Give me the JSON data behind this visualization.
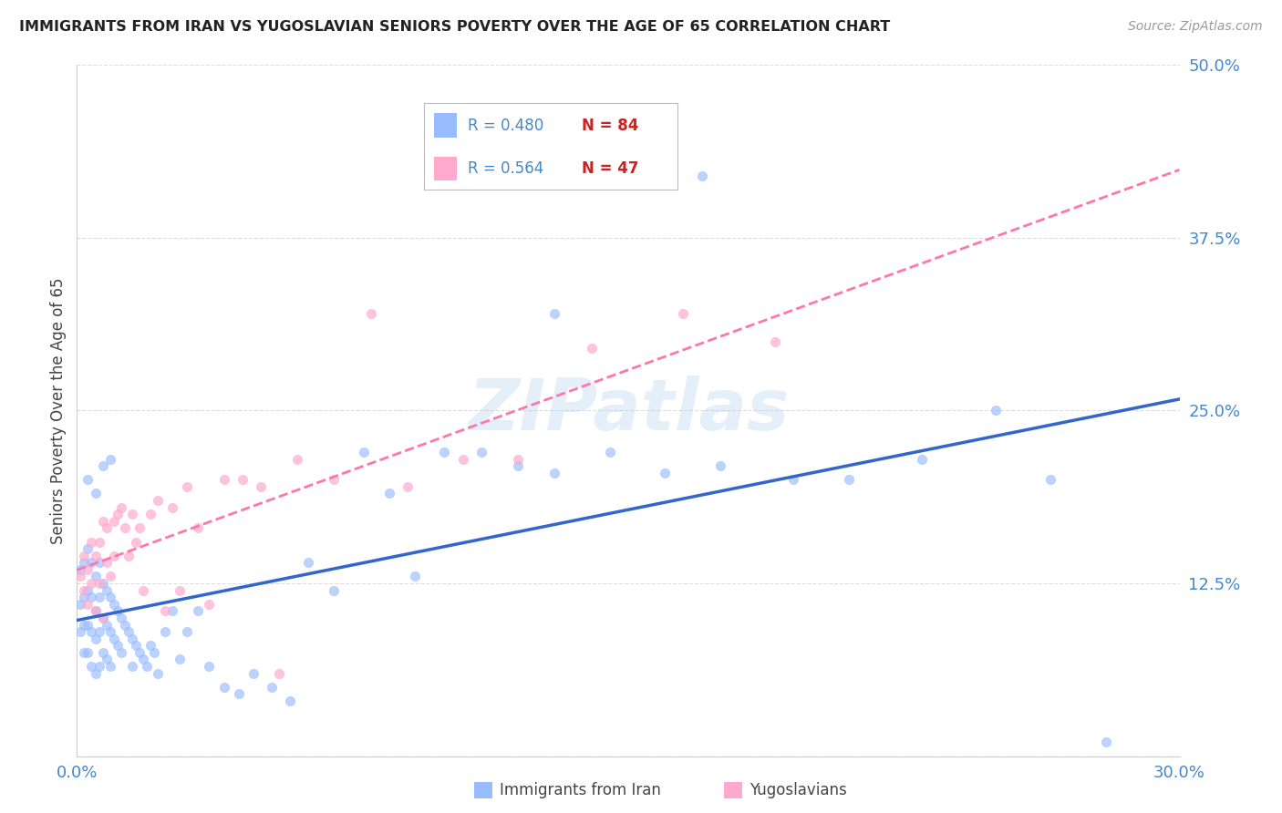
{
  "title": "IMMIGRANTS FROM IRAN VS YUGOSLAVIAN SENIORS POVERTY OVER THE AGE OF 65 CORRELATION CHART",
  "source": "Source: ZipAtlas.com",
  "ylabel": "Seniors Poverty Over the Age of 65",
  "xmin": 0.0,
  "xmax": 0.3,
  "ymin": 0.0,
  "ymax": 0.5,
  "color_blue": "#99bbff",
  "color_blue_line": "#3366cc",
  "color_pink": "#ffaacc",
  "color_pink_line": "#ff77aa",
  "color_axis_label": "#4488cc",
  "color_grid": "#dddddd",
  "iran_x": [
    0.001,
    0.001,
    0.001,
    0.002,
    0.002,
    0.002,
    0.002,
    0.003,
    0.003,
    0.003,
    0.003,
    0.004,
    0.004,
    0.004,
    0.004,
    0.005,
    0.005,
    0.005,
    0.005,
    0.006,
    0.006,
    0.006,
    0.006,
    0.007,
    0.007,
    0.007,
    0.008,
    0.008,
    0.008,
    0.009,
    0.009,
    0.009,
    0.01,
    0.01,
    0.011,
    0.011,
    0.012,
    0.012,
    0.013,
    0.014,
    0.015,
    0.015,
    0.016,
    0.017,
    0.018,
    0.019,
    0.02,
    0.021,
    0.022,
    0.024,
    0.026,
    0.028,
    0.03,
    0.033,
    0.036,
    0.04,
    0.044,
    0.048,
    0.053,
    0.058,
    0.063,
    0.07,
    0.078,
    0.085,
    0.092,
    0.1,
    0.11,
    0.12,
    0.13,
    0.145,
    0.16,
    0.175,
    0.195,
    0.21,
    0.23,
    0.25,
    0.265,
    0.28,
    0.13,
    0.17,
    0.003,
    0.005,
    0.007,
    0.009
  ],
  "iran_y": [
    0.135,
    0.11,
    0.09,
    0.14,
    0.115,
    0.095,
    0.075,
    0.15,
    0.12,
    0.095,
    0.075,
    0.14,
    0.115,
    0.09,
    0.065,
    0.13,
    0.105,
    0.085,
    0.06,
    0.14,
    0.115,
    0.09,
    0.065,
    0.125,
    0.1,
    0.075,
    0.12,
    0.095,
    0.07,
    0.115,
    0.09,
    0.065,
    0.11,
    0.085,
    0.105,
    0.08,
    0.1,
    0.075,
    0.095,
    0.09,
    0.085,
    0.065,
    0.08,
    0.075,
    0.07,
    0.065,
    0.08,
    0.075,
    0.06,
    0.09,
    0.105,
    0.07,
    0.09,
    0.105,
    0.065,
    0.05,
    0.045,
    0.06,
    0.05,
    0.04,
    0.14,
    0.12,
    0.22,
    0.19,
    0.13,
    0.22,
    0.22,
    0.21,
    0.205,
    0.22,
    0.205,
    0.21,
    0.2,
    0.2,
    0.215,
    0.25,
    0.2,
    0.01,
    0.32,
    0.42,
    0.2,
    0.19,
    0.21,
    0.215
  ],
  "yugo_x": [
    0.001,
    0.002,
    0.002,
    0.003,
    0.003,
    0.004,
    0.004,
    0.005,
    0.005,
    0.006,
    0.006,
    0.007,
    0.007,
    0.008,
    0.008,
    0.009,
    0.01,
    0.01,
    0.011,
    0.012,
    0.013,
    0.014,
    0.015,
    0.016,
    0.017,
    0.018,
    0.02,
    0.022,
    0.024,
    0.026,
    0.028,
    0.03,
    0.033,
    0.036,
    0.04,
    0.045,
    0.05,
    0.055,
    0.06,
    0.07,
    0.08,
    0.09,
    0.105,
    0.12,
    0.14,
    0.165,
    0.19
  ],
  "yugo_y": [
    0.13,
    0.12,
    0.145,
    0.11,
    0.135,
    0.155,
    0.125,
    0.145,
    0.105,
    0.155,
    0.125,
    0.1,
    0.17,
    0.14,
    0.165,
    0.13,
    0.17,
    0.145,
    0.175,
    0.18,
    0.165,
    0.145,
    0.175,
    0.155,
    0.165,
    0.12,
    0.175,
    0.185,
    0.105,
    0.18,
    0.12,
    0.195,
    0.165,
    0.11,
    0.2,
    0.2,
    0.195,
    0.06,
    0.215,
    0.2,
    0.32,
    0.195,
    0.215,
    0.215,
    0.295,
    0.32,
    0.3
  ]
}
